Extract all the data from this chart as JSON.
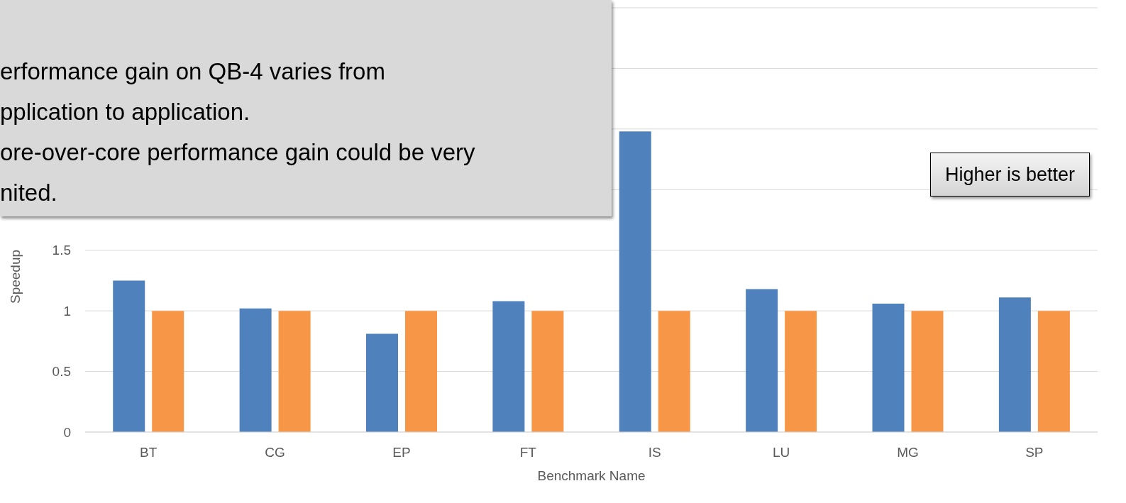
{
  "chart_data": {
    "type": "bar",
    "xlabel": "Benchmark Name",
    "ylabel": "Speedup",
    "categories": [
      "BT",
      "CG",
      "EP",
      "FT",
      "IS",
      "LU",
      "MG",
      "SP"
    ],
    "series": [
      {
        "color": "#4f81bd",
        "values": [
          1.25,
          1.02,
          0.81,
          1.08,
          2.48,
          1.18,
          1.06,
          1.11
        ]
      },
      {
        "color": "#f79646",
        "values": [
          1,
          1,
          1,
          1,
          1,
          1,
          1,
          1
        ]
      }
    ],
    "ylim": [
      0,
      3.5
    ],
    "yticks": [
      0,
      0.5,
      1,
      1.5,
      {
        "value": 2,
        "label": null
      },
      {
        "value": 2.5,
        "label": null
      },
      {
        "value": 3,
        "label": null
      },
      {
        "value": 3.5,
        "label": null
      }
    ],
    "grid": "y",
    "annotations": [
      "erformance gain on QB-4 varies from",
      "pplication to application.",
      "ore-over-core performance gain could be very",
      "nited.",
      "Higher is better"
    ]
  }
}
